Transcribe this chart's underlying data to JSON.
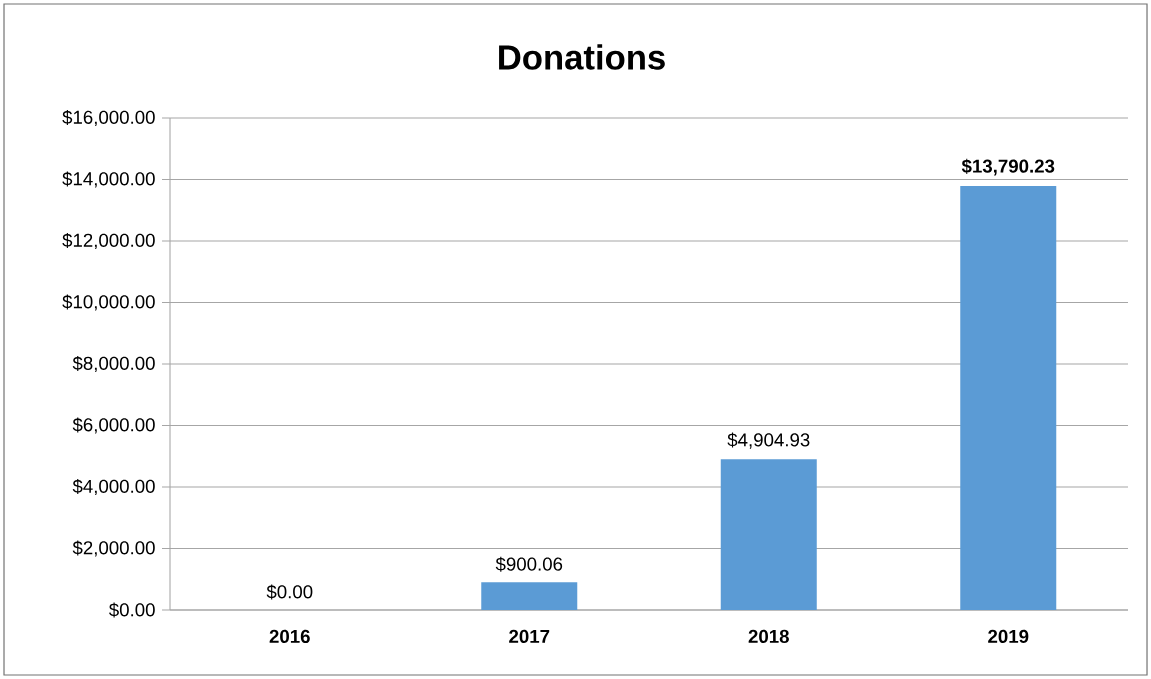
{
  "chart_data": {
    "type": "bar",
    "title": "Donations",
    "categories": [
      "2016",
      "2017",
      "2018",
      "2019"
    ],
    "values": [
      0,
      900.06,
      4904.93,
      13790.23
    ],
    "value_labels": [
      "$0.00",
      "$900.06",
      "$4,904.93",
      "**$13,790.23**"
    ],
    "color": "#5b9bd5",
    "ylim": [
      0,
      16000
    ],
    "yticks": [
      {
        "value": 0,
        "label": "$0.00"
      },
      {
        "value": 2000,
        "label": "$2,000.00"
      },
      {
        "value": 4000,
        "label": "$4,000.00"
      },
      {
        "value": 6000,
        "label": "$6,000.00"
      },
      {
        "value": 8000,
        "label": "$8,000.00"
      },
      {
        "value": 10000,
        "label": "$10,000.00"
      },
      {
        "value": 12000,
        "label": "$12,000.00"
      },
      {
        "value": 14000,
        "label": "$14,000.00"
      },
      {
        "value": 16000,
        "label": "$16,000.00"
      }
    ],
    "grid": "y"
  }
}
